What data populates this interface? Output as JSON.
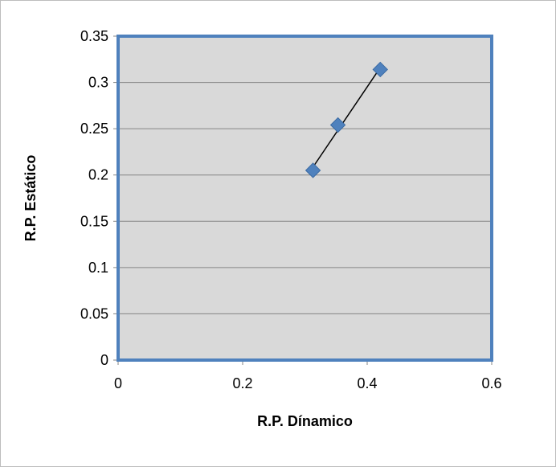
{
  "chart_data": {
    "type": "scatter",
    "title": "",
    "xlabel": "R.P. Dínamico",
    "ylabel": "R.P. Estático",
    "xlim": [
      0,
      0.6
    ],
    "ylim": [
      0,
      0.35
    ],
    "x_ticks": [
      "0",
      "0.2",
      "0.4",
      "0.6"
    ],
    "y_ticks": [
      "0",
      "0.05",
      "0.1",
      "0.15",
      "0.2",
      "0.25",
      "0.3",
      "0.35"
    ],
    "grid": "horizontal",
    "legend": "none",
    "trendline": "linear",
    "series": [
      {
        "x": [
          0.313,
          0.353,
          0.421
        ],
        "y": [
          0.205,
          0.254,
          0.314
        ]
      }
    ],
    "colors": {
      "plot_background": "#d9d9d9",
      "plot_border": "#4f81bd",
      "marker": "#4f81bd",
      "gridline": "#868686",
      "trendline": "#000000"
    }
  }
}
